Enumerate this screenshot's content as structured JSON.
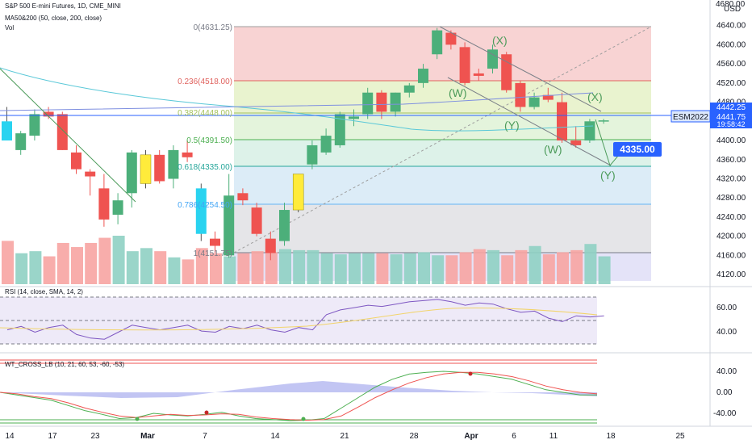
{
  "header": {
    "symbol_line": "S&P 500 E-mini Futures, 1D, CME_MINI",
    "ma_line": "MA50&200 (50, close, 200, close)",
    "vol_line": "Vol"
  },
  "currency": "USD",
  "price_axis": {
    "ticks": [
      "4640.00",
      "4600.00",
      "4560.00",
      "4520.00",
      "4480.00",
      "4440.00",
      "4400.00",
      "4360.00",
      "4320.00",
      "4280.00",
      "4240.00",
      "4200.00",
      "4160.00",
      "4120.00"
    ],
    "top_tick": "4680.00"
  },
  "badges": {
    "last_price": "4441.75",
    "countdown": "19:58:42",
    "ma_value": "4442.25",
    "symbol_tag": "ESM2022",
    "target_price": "4335.00"
  },
  "fib_labels": [
    "0(4631.25)",
    "0.236(4518.00)",
    "0.382(4448.00)",
    "0.5(4391.50)",
    "0.618(4335.00)",
    "0.786(4254.50)",
    "1(4151.75)"
  ],
  "wave_labels": [
    "(X)",
    "(W)",
    "(Y)",
    "(X)",
    "(W)",
    "(Y)"
  ],
  "rsi": {
    "title": "RSI (14, close, SMA, 14, 2)",
    "ticks": [
      "60.00",
      "40.00"
    ]
  },
  "wt": {
    "title": "WT_CROSS_LB (10, 21, 60, 53, -60, -53)",
    "ticks": [
      "40.00",
      "0.00",
      "-40.00"
    ]
  },
  "time_axis": [
    "14",
    "17",
    "23",
    "Mar",
    "7",
    "14",
    "21",
    "28",
    "Apr",
    "6",
    "11",
    "18",
    "25"
  ],
  "colors": {
    "up": "#4caf7a",
    "down": "#ef5350",
    "highlight": "#ffeb3b",
    "cyan": "#29d3f0",
    "accent_blue": "#2962ff"
  },
  "chart_data": {
    "type": "candlestick",
    "price_range": [
      4100,
      4690
    ],
    "candles": [
      {
        "o": 4440,
        "h": 4470,
        "l": 4400,
        "c": 4400,
        "hl": "cyan"
      },
      {
        "o": 4380,
        "h": 4420,
        "l": 4370,
        "c": 4415
      },
      {
        "o": 4410,
        "h": 4465,
        "l": 4400,
        "c": 4455
      },
      {
        "o": 4460,
        "h": 4470,
        "l": 4445,
        "c": 4450
      },
      {
        "o": 4455,
        "h": 4460,
        "l": 4380,
        "c": 4380
      },
      {
        "o": 4375,
        "h": 4390,
        "l": 4330,
        "c": 4340
      },
      {
        "o": 4335,
        "h": 4340,
        "l": 4285,
        "c": 4325
      },
      {
        "o": 4300,
        "h": 4330,
        "l": 4220,
        "c": 4235
      },
      {
        "o": 4245,
        "h": 4290,
        "l": 4225,
        "c": 4275
      },
      {
        "o": 4290,
        "h": 4380,
        "l": 4260,
        "c": 4375
      },
      {
        "o": 4310,
        "h": 4380,
        "l": 4300,
        "c": 4370,
        "hl": "yellow"
      },
      {
        "o": 4370,
        "h": 4380,
        "l": 4310,
        "c": 4315
      },
      {
        "o": 4320,
        "h": 4390,
        "l": 4300,
        "c": 4380
      },
      {
        "o": 4375,
        "h": 4400,
        "l": 4355,
        "c": 4365
      },
      {
        "o": 4300,
        "h": 4310,
        "l": 4190,
        "c": 4205,
        "hl": "cyan"
      },
      {
        "o": 4195,
        "h": 4210,
        "l": 4165,
        "c": 4180
      },
      {
        "o": 4160,
        "h": 4330,
        "l": 4155,
        "c": 4285
      },
      {
        "o": 4290,
        "h": 4300,
        "l": 4265,
        "c": 4275
      },
      {
        "o": 4260,
        "h": 4270,
        "l": 4200,
        "c": 4205
      },
      {
        "o": 4195,
        "h": 4210,
        "l": 4150,
        "c": 4165
      },
      {
        "o": 4190,
        "h": 4270,
        "l": 4180,
        "c": 4255
      },
      {
        "o": 4255,
        "h": 4330,
        "l": 4250,
        "c": 4330,
        "hl": "yellow"
      },
      {
        "o": 4350,
        "h": 4400,
        "l": 4340,
        "c": 4390
      },
      {
        "o": 4375,
        "h": 4425,
        "l": 4370,
        "c": 4410
      },
      {
        "o": 4390,
        "h": 4460,
        "l": 4385,
        "c": 4455
      },
      {
        "o": 4445,
        "h": 4465,
        "l": 4430,
        "c": 4450
      },
      {
        "o": 4455,
        "h": 4510,
        "l": 4445,
        "c": 4500
      },
      {
        "o": 4500,
        "h": 4505,
        "l": 4445,
        "c": 4460
      },
      {
        "o": 4460,
        "h": 4500,
        "l": 4450,
        "c": 4500
      },
      {
        "o": 4500,
        "h": 4520,
        "l": 4490,
        "c": 4515
      },
      {
        "o": 4520,
        "h": 4560,
        "l": 4510,
        "c": 4550
      },
      {
        "o": 4580,
        "h": 4635,
        "l": 4570,
        "c": 4630
      },
      {
        "o": 4625,
        "h": 4630,
        "l": 4590,
        "c": 4600
      },
      {
        "o": 4595,
        "h": 4605,
        "l": 4515,
        "c": 4520
      },
      {
        "o": 4540,
        "h": 4550,
        "l": 4525,
        "c": 4535
      },
      {
        "o": 4550,
        "h": 4600,
        "l": 4540,
        "c": 4590
      },
      {
        "o": 4580,
        "h": 4585,
        "l": 4500,
        "c": 4505
      },
      {
        "o": 4520,
        "h": 4525,
        "l": 4460,
        "c": 4470
      },
      {
        "o": 4470,
        "h": 4500,
        "l": 4465,
        "c": 4490
      },
      {
        "o": 4495,
        "h": 4510,
        "l": 4480,
        "c": 4485
      },
      {
        "o": 4480,
        "h": 4500,
        "l": 4395,
        "c": 4400
      },
      {
        "o": 4400,
        "h": 4430,
        "l": 4385,
        "c": 4390
      },
      {
        "o": 4400,
        "h": 4445,
        "l": 4395,
        "c": 4440
      },
      {
        "o": 4440,
        "h": 4445,
        "l": 4435,
        "c": 4442
      }
    ],
    "volumes": [
      0.42,
      0.3,
      0.32,
      0.27,
      0.4,
      0.36,
      0.4,
      0.45,
      0.47,
      0.32,
      0.35,
      0.32,
      0.26,
      0.24,
      0.35,
      0.3,
      0.27,
      0.3,
      0.32,
      0.31,
      0.34,
      0.33,
      0.33,
      0.3,
      0.29,
      0.3,
      0.3,
      0.3,
      0.29,
      0.3,
      0.31,
      0.28,
      0.28,
      0.31,
      0.34,
      0.33,
      0.28,
      0.33,
      0.37,
      0.29,
      0.31,
      0.33,
      0.39,
      0.27
    ],
    "rsi_values": [
      42,
      45,
      40,
      44,
      46,
      38,
      35,
      34,
      40,
      46,
      44,
      42,
      44,
      46,
      41,
      40,
      45,
      43,
      46,
      42,
      40,
      44,
      42,
      55,
      59,
      61,
      63,
      62,
      64,
      66,
      67,
      68,
      66,
      63,
      65,
      64,
      60,
      57,
      58,
      52,
      49,
      54,
      53,
      54
    ],
    "wt_wave1": [
      0,
      -5,
      -10,
      -15,
      -25,
      -35,
      -42,
      -50,
      -48,
      -40,
      -43,
      -45,
      -42,
      -38,
      -45,
      -50,
      -52,
      -54,
      -53,
      -50,
      -30,
      -10,
      10,
      25,
      35,
      38,
      40,
      38,
      35,
      30,
      25,
      15,
      5,
      0,
      -5,
      -5
    ],
    "wt_wave2": [
      0,
      -3,
      -8,
      -12,
      -20,
      -30,
      -38,
      -45,
      -48,
      -45,
      -42,
      -44,
      -43,
      -41,
      -42,
      -47,
      -50,
      -52,
      -53,
      -52,
      -45,
      -28,
      -10,
      5,
      18,
      28,
      35,
      38,
      38,
      35,
      30,
      22,
      12,
      5,
      0,
      -3
    ],
    "fib_levels": [
      4631.25,
      4518.0,
      4448.0,
      4391.5,
      4335.0,
      4254.5,
      4151.75
    ]
  }
}
